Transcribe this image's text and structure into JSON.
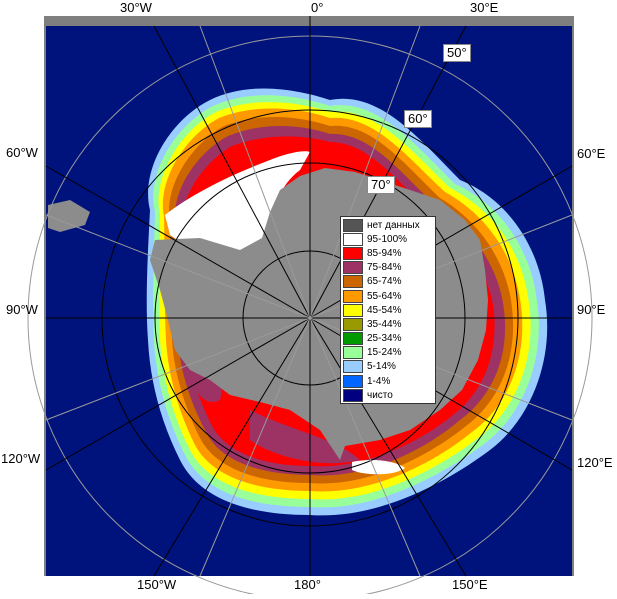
{
  "map": {
    "projection_labels": {
      "top": [
        "30°W",
        "0°",
        "30°E"
      ],
      "bottom": [
        "150°W",
        "180°",
        "150°E"
      ],
      "left": [
        "60°W",
        "90°W",
        "120°W"
      ],
      "right": [
        "60°E",
        "90°E",
        "120°E"
      ],
      "latitudes": [
        "50°",
        "60°",
        "70°"
      ]
    },
    "colors": {
      "ocean": "#00137d",
      "land": "#8c8c8c",
      "frame": "#7f7f7f",
      "grid": "#9a9a9a"
    }
  },
  "legend": {
    "items": [
      {
        "label": "нет данных",
        "color": "#555555"
      },
      {
        "label": "95-100%",
        "color": "#ffffff"
      },
      {
        "label": "85-94%",
        "color": "#ff0000"
      },
      {
        "label": "75-84%",
        "color": "#9c3364"
      },
      {
        "label": "65-74%",
        "color": "#cc6600"
      },
      {
        "label": "55-64%",
        "color": "#ff9900"
      },
      {
        "label": "45-54%",
        "color": "#ffff00"
      },
      {
        "label": "35-44%",
        "color": "#999900"
      },
      {
        "label": "25-34%",
        "color": "#009900"
      },
      {
        "label": "15-24%",
        "color": "#99ff99"
      },
      {
        "label": "5-14%",
        "color": "#99ccff"
      },
      {
        "label": "1-4%",
        "color": "#0066ff"
      },
      {
        "label": "чисто",
        "color": "#000080"
      }
    ]
  }
}
